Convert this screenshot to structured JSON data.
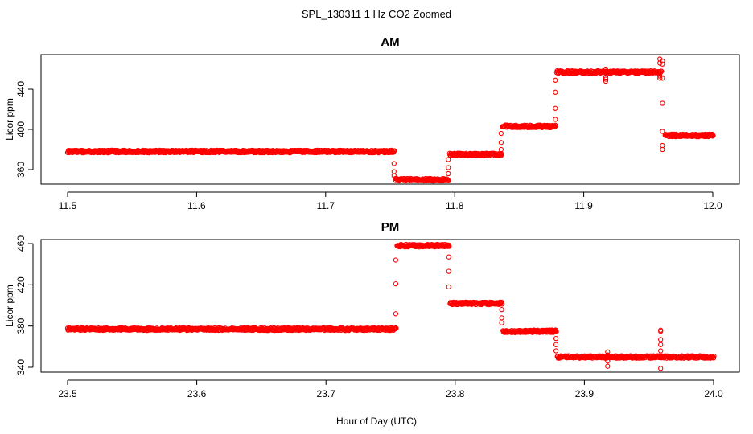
{
  "page_title": "SPL_130311  1 Hz CO2 Zoomed",
  "xlabel": "Hour of Day (UTC)",
  "chart_data": [
    {
      "type": "scatter",
      "title": "AM",
      "ylabel": "Licor ppm",
      "xlim": [
        11.5,
        12.0
      ],
      "ylim": [
        348,
        478
      ],
      "x_ticks": [
        "11.5",
        "11.6",
        "11.7",
        "11.8",
        "11.9",
        "12.0"
      ],
      "y_ticks": [
        "360",
        "400",
        "440"
      ],
      "marker_color": "#ff0000",
      "segments": [
        {
          "x_start": 11.5,
          "x_end": 11.753,
          "y": 378
        },
        {
          "x_start": 11.754,
          "x_end": 11.795,
          "y": 350
        },
        {
          "x_start": 11.796,
          "x_end": 11.836,
          "y": 375
        },
        {
          "x_start": 11.837,
          "x_end": 11.878,
          "y": 403
        },
        {
          "x_start": 11.879,
          "x_end": 11.96,
          "y": 457
        },
        {
          "x_start": 11.963,
          "x_end": 12.0,
          "y": 394
        }
      ],
      "transitions": [
        {
          "x": 11.753,
          "y": [
            366,
            358,
            354
          ]
        },
        {
          "x": 11.795,
          "y": [
            356,
            362,
            370
          ]
        },
        {
          "x": 11.836,
          "y": [
            380,
            387,
            396
          ]
        },
        {
          "x": 11.878,
          "y": [
            410,
            421,
            437,
            449
          ]
        },
        {
          "x": 11.961,
          "y": [
            468,
            465,
            451,
            426,
            398,
            384,
            380
          ]
        }
      ],
      "outliers": [
        {
          "x": 11.917,
          "y": [
            448,
            450,
            452,
            460
          ]
        },
        {
          "x": 11.959,
          "y": [
            451,
            453,
            466,
            470
          ]
        }
      ]
    },
    {
      "type": "scatter",
      "title": "PM",
      "ylabel": "Licor ppm",
      "xlim": [
        23.5,
        24.0
      ],
      "ylim": [
        336,
        462
      ],
      "x_ticks": [
        "23.5",
        "23.6",
        "23.7",
        "23.8",
        "23.9",
        "24.0"
      ],
      "y_ticks": [
        "340",
        "380",
        "420",
        "460"
      ],
      "marker_color": "#ff0000",
      "segments": [
        {
          "x_start": 23.5,
          "x_end": 23.754,
          "y": 377
        },
        {
          "x_start": 23.755,
          "x_end": 23.795,
          "y": 458
        },
        {
          "x_start": 23.796,
          "x_end": 23.836,
          "y": 402
        },
        {
          "x_start": 23.837,
          "x_end": 23.878,
          "y": 375
        },
        {
          "x_start": 23.879,
          "x_end": 24.0,
          "y": 350
        }
      ],
      "transitions": [
        {
          "x": 23.754,
          "y": [
            392,
            421,
            444
          ]
        },
        {
          "x": 23.795,
          "y": [
            447,
            433,
            418
          ]
        },
        {
          "x": 23.836,
          "y": [
            396,
            388,
            383
          ]
        },
        {
          "x": 23.878,
          "y": [
            368,
            362,
            356
          ]
        }
      ],
      "outliers": [
        {
          "x": 23.918,
          "y": [
            341,
            346,
            352,
            355
          ]
        },
        {
          "x": 23.959,
          "y": [
            339,
            356,
            362,
            367,
            375,
            376
          ]
        }
      ]
    }
  ]
}
